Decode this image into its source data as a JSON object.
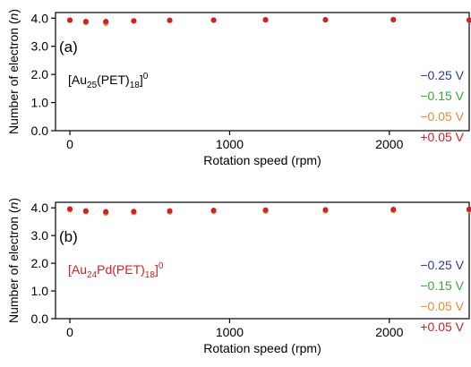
{
  "chart_data": [
    {
      "type": "scatter",
      "panel_label": "(a)",
      "compound": {
        "base": "[Au",
        "sub1": "25",
        "mid": "(PET)",
        "sub2": "18",
        "end": "]",
        "sup": "0"
      },
      "compound_color": "#000000",
      "xlabel": "Rotation speed (rpm)",
      "ylabel": "Number of electron (n)",
      "xlim": [
        -90,
        2500
      ],
      "ylim": [
        0,
        4.2
      ],
      "xticks": [
        "0",
        "1000",
        "2000"
      ],
      "yticks": [
        "0.0",
        "1.0",
        "2.0",
        "3.0",
        "4.0"
      ],
      "legend_position": "right",
      "x": [
        0,
        100,
        225,
        400,
        625,
        900,
        1225,
        1600,
        2025,
        2500
      ],
      "series": [
        {
          "name": "−0.25 V",
          "color": "#2b3a9a",
          "values": [
            3.93,
            3.87,
            3.86,
            3.9,
            3.92,
            3.93,
            3.94,
            3.94,
            3.94,
            3.93
          ]
        },
        {
          "name": "−0.15 V",
          "color": "#3aa63a",
          "values": [
            3.93,
            3.86,
            3.86,
            3.9,
            3.92,
            3.93,
            3.94,
            3.94,
            3.94,
            3.93
          ]
        },
        {
          "name": "−0.05 V",
          "color": "#e88a2a",
          "values": [
            3.92,
            3.84,
            3.82,
            3.9,
            3.92,
            3.93,
            3.94,
            3.94,
            3.94,
            3.93
          ]
        },
        {
          "name": "+0.05 V",
          "color": "#d42020",
          "values": [
            3.93,
            3.88,
            3.88,
            3.9,
            3.92,
            3.93,
            3.94,
            3.94,
            3.95,
            3.93
          ]
        }
      ]
    },
    {
      "type": "scatter",
      "panel_label": "(b)",
      "compound": {
        "base": "[Au",
        "sub1": "24",
        "mid": "Pd(PET)",
        "sub2": "18",
        "end": "]",
        "sup": "0"
      },
      "compound_color": "#d42020",
      "xlabel": "Rotation speed (rpm)",
      "ylabel": "Number of electron (n)",
      "xlim": [
        -90,
        2500
      ],
      "ylim": [
        0,
        4.2
      ],
      "xticks": [
        "0",
        "1000",
        "2000"
      ],
      "yticks": [
        "0.0",
        "1.0",
        "2.0",
        "3.0",
        "4.0"
      ],
      "legend_position": "right",
      "x": [
        0,
        100,
        225,
        400,
        625,
        900,
        1225,
        1600,
        2025,
        2500
      ],
      "series": [
        {
          "name": "−0.25 V",
          "color": "#2b3a9a",
          "values": [
            3.95,
            3.88,
            3.84,
            3.85,
            3.87,
            3.89,
            3.9,
            3.91,
            3.92,
            3.93
          ]
        },
        {
          "name": "−0.15 V",
          "color": "#3aa63a",
          "values": [
            3.94,
            3.87,
            3.82,
            3.84,
            3.86,
            3.88,
            3.89,
            3.9,
            3.91,
            3.92
          ]
        },
        {
          "name": "−0.05 V",
          "color": "#e88a2a",
          "values": [
            3.93,
            3.86,
            3.81,
            3.83,
            3.85,
            3.87,
            3.88,
            3.89,
            3.9,
            3.91
          ]
        },
        {
          "name": "+0.05 V",
          "color": "#d42020",
          "values": [
            3.96,
            3.89,
            3.86,
            3.87,
            3.89,
            3.91,
            3.92,
            3.93,
            3.94,
            3.95
          ]
        }
      ]
    }
  ]
}
